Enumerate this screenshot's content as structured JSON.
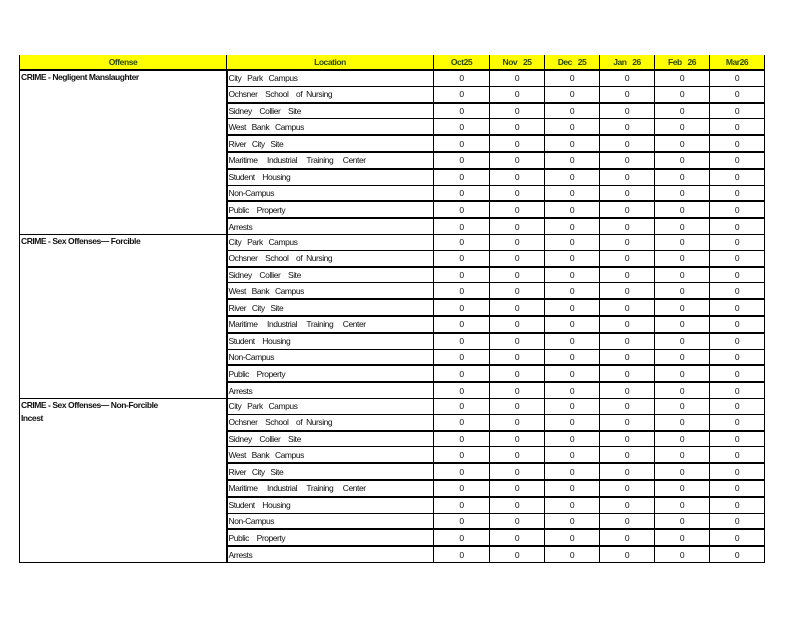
{
  "header": {
    "offense": "Offense",
    "location": "Location",
    "months": [
      "Oct25",
      "Nov   25",
      "Dec   25",
      "Jan   26",
      "Feb   26",
      "Mar26"
    ]
  },
  "colors": {
    "header_bg": "#ffff00",
    "header_text": "#2d4a00"
  },
  "groups": [
    {
      "offense": "CRIME     - Negligent      Manslaughter",
      "rows": [
        {
          "location": "City   Park   Campus",
          "values": [
            0,
            0,
            0,
            0,
            0,
            0
          ]
        },
        {
          "location": "Ochsner    School    of  Nursing",
          "values": [
            0,
            0,
            0,
            0,
            0,
            0
          ]
        },
        {
          "location": "Sidney    Collier    Site",
          "values": [
            0,
            0,
            0,
            0,
            0,
            0
          ]
        },
        {
          "location": "West   Bank   Campus",
          "values": [
            0,
            0,
            0,
            0,
            0,
            0
          ]
        },
        {
          "location": "River   City   Site",
          "values": [
            0,
            0,
            0,
            0,
            0,
            0
          ]
        },
        {
          "location": "Maritime     Industrial     Training     Center",
          "values": [
            0,
            0,
            0,
            0,
            0,
            0
          ]
        },
        {
          "location": "Student    Housing",
          "values": [
            0,
            0,
            0,
            0,
            0,
            0
          ]
        },
        {
          "location": "Non-Campus",
          "values": [
            0,
            0,
            0,
            0,
            0,
            0
          ]
        },
        {
          "location": "Public    Property",
          "values": [
            0,
            0,
            0,
            0,
            0,
            0
          ]
        },
        {
          "location": "Arrests",
          "values": [
            0,
            0,
            0,
            0,
            0,
            0
          ]
        }
      ]
    },
    {
      "offense": "CRIME - Sex Offenses— Forcible",
      "rows": [
        {
          "location": "City   Park   Campus",
          "values": [
            0,
            0,
            0,
            0,
            0,
            0
          ]
        },
        {
          "location": "Ochsner    School    of  Nursing",
          "values": [
            0,
            0,
            0,
            0,
            0,
            0
          ]
        },
        {
          "location": "Sidney    Collier    Site",
          "values": [
            0,
            0,
            0,
            0,
            0,
            0
          ]
        },
        {
          "location": "West   Bank   Campus",
          "values": [
            0,
            0,
            0,
            0,
            0,
            0
          ]
        },
        {
          "location": "River   City   Site",
          "values": [
            0,
            0,
            0,
            0,
            0,
            0
          ]
        },
        {
          "location": "Maritime     Industrial     Training     Center",
          "values": [
            0,
            0,
            0,
            0,
            0,
            0
          ]
        },
        {
          "location": "Student    Housing",
          "values": [
            0,
            0,
            0,
            0,
            0,
            0
          ]
        },
        {
          "location": "Non-Campus",
          "values": [
            0,
            0,
            0,
            0,
            0,
            0
          ]
        },
        {
          "location": "Public    Property",
          "values": [
            0,
            0,
            0,
            0,
            0,
            0
          ]
        },
        {
          "location": "Arrests",
          "values": [
            0,
            0,
            0,
            0,
            0,
            0
          ]
        }
      ]
    },
    {
      "offense": "CRIME - Sex Offenses— Non-Forcible\nIncest",
      "rows": [
        {
          "location": "City   Park   Campus",
          "values": [
            0,
            0,
            0,
            0,
            0,
            0
          ]
        },
        {
          "location": "Ochsner    School    of  Nursing",
          "values": [
            0,
            0,
            0,
            0,
            0,
            0
          ]
        },
        {
          "location": "Sidney    Collier    Site",
          "values": [
            0,
            0,
            0,
            0,
            0,
            0
          ]
        },
        {
          "location": "West   Bank   Campus",
          "values": [
            0,
            0,
            0,
            0,
            0,
            0
          ]
        },
        {
          "location": "River   City   Site",
          "values": [
            0,
            0,
            0,
            0,
            0,
            0
          ]
        },
        {
          "location": "Maritime     Industrial     Training     Center",
          "values": [
            0,
            0,
            0,
            0,
            0,
            0
          ]
        },
        {
          "location": "Student    Housing",
          "values": [
            0,
            0,
            0,
            0,
            0,
            0
          ]
        },
        {
          "location": "Non-Campus",
          "values": [
            0,
            0,
            0,
            0,
            0,
            0
          ]
        },
        {
          "location": "Public    Property",
          "values": [
            0,
            0,
            0,
            0,
            0,
            0
          ]
        },
        {
          "location": "Arrests",
          "values": [
            0,
            0,
            0,
            0,
            0,
            0
          ]
        }
      ]
    }
  ]
}
